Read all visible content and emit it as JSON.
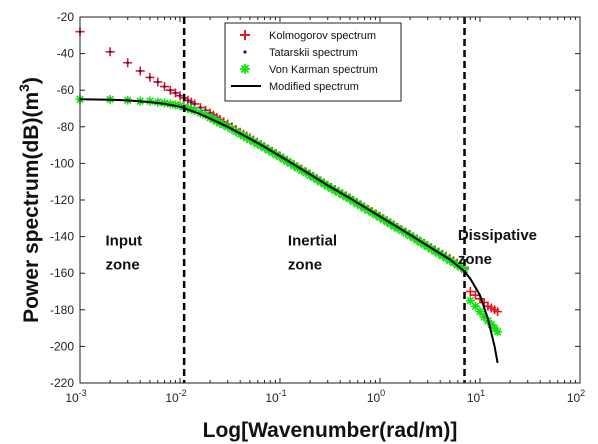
{
  "chart_data": {
    "type": "scatter",
    "xlabel": "Log[Wavenumber(rad/m)]",
    "ylabel": "Power spectrum(dB)(m",
    "ylabel_sup": "3",
    "ylabel_close": ")",
    "x_scale": "log",
    "xlim": [
      0.001,
      100
    ],
    "ylim": [
      -220,
      -20
    ],
    "x_ticks": [
      {
        "value": 0.001,
        "base": "10",
        "exp": "-3"
      },
      {
        "value": 0.01,
        "base": "10",
        "exp": "-2"
      },
      {
        "value": 0.1,
        "base": "10",
        "exp": "-1"
      },
      {
        "value": 1,
        "base": "10",
        "exp": "0"
      },
      {
        "value": 10,
        "base": "10",
        "exp": "1"
      },
      {
        "value": 100,
        "base": "10",
        "exp": "2"
      }
    ],
    "y_ticks": [
      -220,
      -200,
      -180,
      -160,
      -140,
      -120,
      -100,
      -80,
      -60,
      -40,
      -20
    ],
    "grid": false,
    "legend_position": "top-center",
    "vlines": [
      0.011,
      7
    ],
    "zones": [
      {
        "lines": [
          "Input",
          "zone"
        ],
        "x": 0.0018,
        "y": -142
      },
      {
        "lines": [
          "Inertial",
          "zone"
        ],
        "x": 0.12,
        "y": -142
      },
      {
        "lines": [
          "Dissipative",
          "zone"
        ],
        "x": 6,
        "y": -139
      }
    ],
    "series": [
      {
        "name": "Kolmogorov spectrum",
        "marker": "plus",
        "color": "#e8141b",
        "points": [
          [
            0.001,
            -28
          ],
          [
            0.002,
            -39
          ],
          [
            0.003,
            -45
          ],
          [
            0.004,
            -49.5
          ],
          [
            0.005,
            -53
          ],
          [
            0.006,
            -55.5
          ],
          [
            0.007,
            -58
          ],
          [
            0.008,
            -60
          ],
          [
            0.009,
            -61.5
          ],
          [
            0.01,
            -63
          ],
          [
            0.012,
            -65.5
          ],
          [
            0.014,
            -67.5
          ],
          [
            0.016,
            -69.5
          ],
          [
            0.018,
            -71
          ],
          [
            0.02,
            -72.5
          ],
          [
            0.025,
            -76
          ],
          [
            0.03,
            -78.5
          ],
          [
            0.04,
            -83
          ],
          [
            0.05,
            -86
          ],
          [
            0.07,
            -91
          ],
          [
            0.1,
            -96
          ],
          [
            0.15,
            -102
          ],
          [
            0.2,
            -106
          ],
          [
            0.3,
            -112
          ],
          [
            0.5,
            -119
          ],
          [
            0.7,
            -124
          ],
          [
            1,
            -129
          ],
          [
            1.5,
            -135
          ],
          [
            2,
            -139
          ],
          [
            3,
            -145
          ],
          [
            5,
            -152
          ],
          [
            7,
            -157
          ],
          [
            8,
            -170
          ],
          [
            9,
            -172
          ],
          [
            10,
            -174
          ],
          [
            11,
            -176
          ],
          [
            12,
            -178
          ],
          [
            13,
            -179
          ],
          [
            14,
            -180
          ],
          [
            15,
            -181
          ]
        ]
      },
      {
        "name": "Tatarskii spectrum",
        "marker": "dot",
        "color": "#1a1a8c",
        "points": [
          [
            0.001,
            -28
          ],
          [
            0.002,
            -39
          ],
          [
            0.003,
            -45
          ],
          [
            0.004,
            -49.5
          ],
          [
            0.005,
            -53
          ],
          [
            0.006,
            -55.5
          ],
          [
            0.007,
            -58
          ],
          [
            0.008,
            -60
          ],
          [
            0.009,
            -61.5
          ],
          [
            0.01,
            -63
          ],
          [
            0.012,
            -65.5
          ],
          [
            0.014,
            -67.5
          ],
          [
            0.016,
            -69.5
          ],
          [
            0.018,
            -71
          ],
          [
            0.02,
            -72.5
          ],
          [
            0.025,
            -76
          ],
          [
            0.03,
            -78.5
          ]
        ]
      },
      {
        "name": "Von Karman spectrum",
        "marker": "asterisk",
        "color": "#11e011",
        "points": [
          [
            0.001,
            -65
          ],
          [
            0.002,
            -65
          ],
          [
            0.003,
            -65.5
          ],
          [
            0.004,
            -66
          ],
          [
            0.005,
            -66
          ],
          [
            0.006,
            -66.5
          ],
          [
            0.007,
            -67
          ],
          [
            0.008,
            -67.5
          ],
          [
            0.009,
            -68
          ],
          [
            0.01,
            -68.5
          ],
          [
            0.012,
            -70
          ],
          [
            0.014,
            -71
          ],
          [
            0.016,
            -72.5
          ],
          [
            0.018,
            -73.5
          ],
          [
            0.02,
            -75
          ],
          [
            0.025,
            -78
          ],
          [
            0.03,
            -80
          ],
          [
            0.04,
            -84
          ],
          [
            0.05,
            -87
          ],
          [
            0.07,
            -91.5
          ],
          [
            0.1,
            -96.5
          ],
          [
            0.15,
            -102.5
          ],
          [
            0.2,
            -106.5
          ],
          [
            0.3,
            -112.5
          ],
          [
            0.5,
            -119.5
          ],
          [
            0.7,
            -124.5
          ],
          [
            1,
            -129.5
          ],
          [
            1.5,
            -135.5
          ],
          [
            2,
            -139.5
          ],
          [
            3,
            -145.5
          ],
          [
            5,
            -153
          ],
          [
            7,
            -158
          ],
          [
            8,
            -175
          ],
          [
            9,
            -178
          ],
          [
            10,
            -181
          ],
          [
            11,
            -184
          ],
          [
            12,
            -186
          ],
          [
            13,
            -188
          ],
          [
            14,
            -190
          ],
          [
            15,
            -192
          ]
        ]
      },
      {
        "name": "Modified spectrum",
        "marker": "line",
        "color": "#000000",
        "points": [
          [
            0.001,
            -65
          ],
          [
            0.002,
            -65.2
          ],
          [
            0.003,
            -65.6
          ],
          [
            0.005,
            -66.5
          ],
          [
            0.007,
            -67.5
          ],
          [
            0.01,
            -69
          ],
          [
            0.015,
            -72.5
          ],
          [
            0.02,
            -75.5
          ],
          [
            0.03,
            -80
          ],
          [
            0.05,
            -86.5
          ],
          [
            0.07,
            -91
          ],
          [
            0.1,
            -96
          ],
          [
            0.2,
            -106
          ],
          [
            0.3,
            -112
          ],
          [
            0.5,
            -119
          ],
          [
            1,
            -129
          ],
          [
            2,
            -139
          ],
          [
            3,
            -145
          ],
          [
            5,
            -152.5
          ],
          [
            7,
            -159
          ],
          [
            8,
            -163
          ],
          [
            10,
            -172
          ],
          [
            12,
            -185
          ],
          [
            14,
            -200
          ],
          [
            15,
            -209
          ]
        ]
      }
    ]
  }
}
